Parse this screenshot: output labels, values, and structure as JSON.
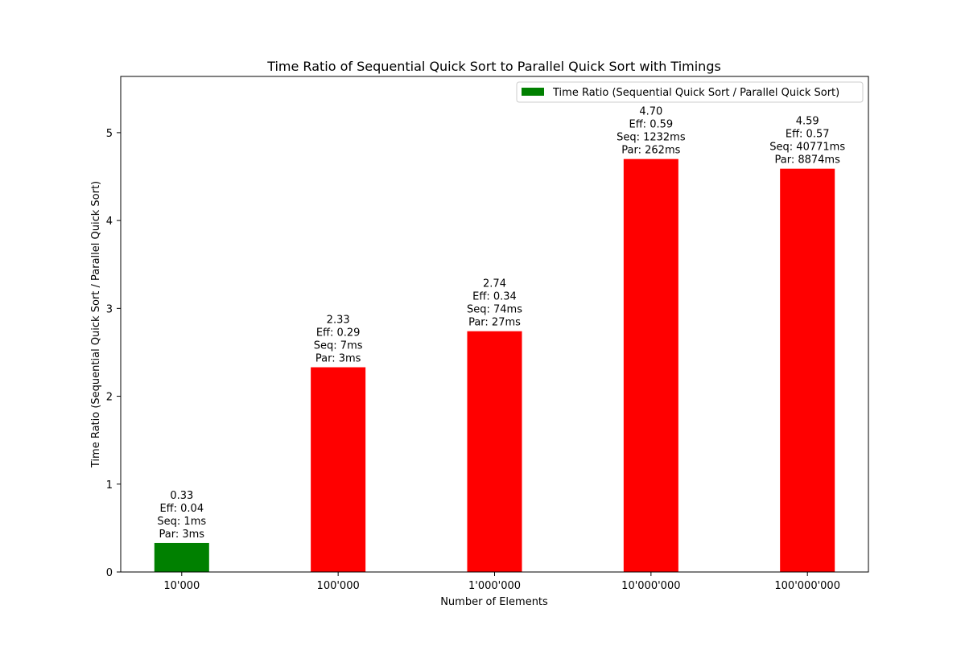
{
  "chart_data": {
    "type": "bar",
    "title": "Time Ratio of Sequential Quick Sort to Parallel Quick Sort with Timings",
    "xlabel": "Number of Elements",
    "ylabel": "Time Ratio (Sequential Quick Sort / Parallel Quick Sort)",
    "categories": [
      "10'000",
      "100'000",
      "1'000'000",
      "10'000'000",
      "100'000'000"
    ],
    "values": [
      0.33,
      2.33,
      2.74,
      4.7,
      4.59
    ],
    "bar_colors": [
      "#008000",
      "#ff0000",
      "#ff0000",
      "#ff0000",
      "#ff0000"
    ],
    "annotations": [
      [
        "0.33",
        "Eff: 0.04",
        "Seq: 1ms",
        "Par: 3ms"
      ],
      [
        "2.33",
        "Eff: 0.29",
        "Seq: 7ms",
        "Par: 3ms"
      ],
      [
        "2.74",
        "Eff: 0.34",
        "Seq: 74ms",
        "Par: 27ms"
      ],
      [
        "4.70",
        "Eff: 0.59",
        "Seq: 1232ms",
        "Par: 262ms"
      ],
      [
        "4.59",
        "Eff: 0.57",
        "Seq: 40771ms",
        "Par: 8874ms"
      ]
    ],
    "yticks": [
      0,
      1,
      2,
      3,
      4,
      5
    ],
    "ylim": [
      0,
      5.64
    ],
    "grid": false,
    "legend": {
      "placement": "top-right",
      "entries": [
        {
          "label": "Time Ratio (Sequential Quick Sort / Parallel Quick Sort)",
          "color": "#008000"
        }
      ]
    }
  }
}
